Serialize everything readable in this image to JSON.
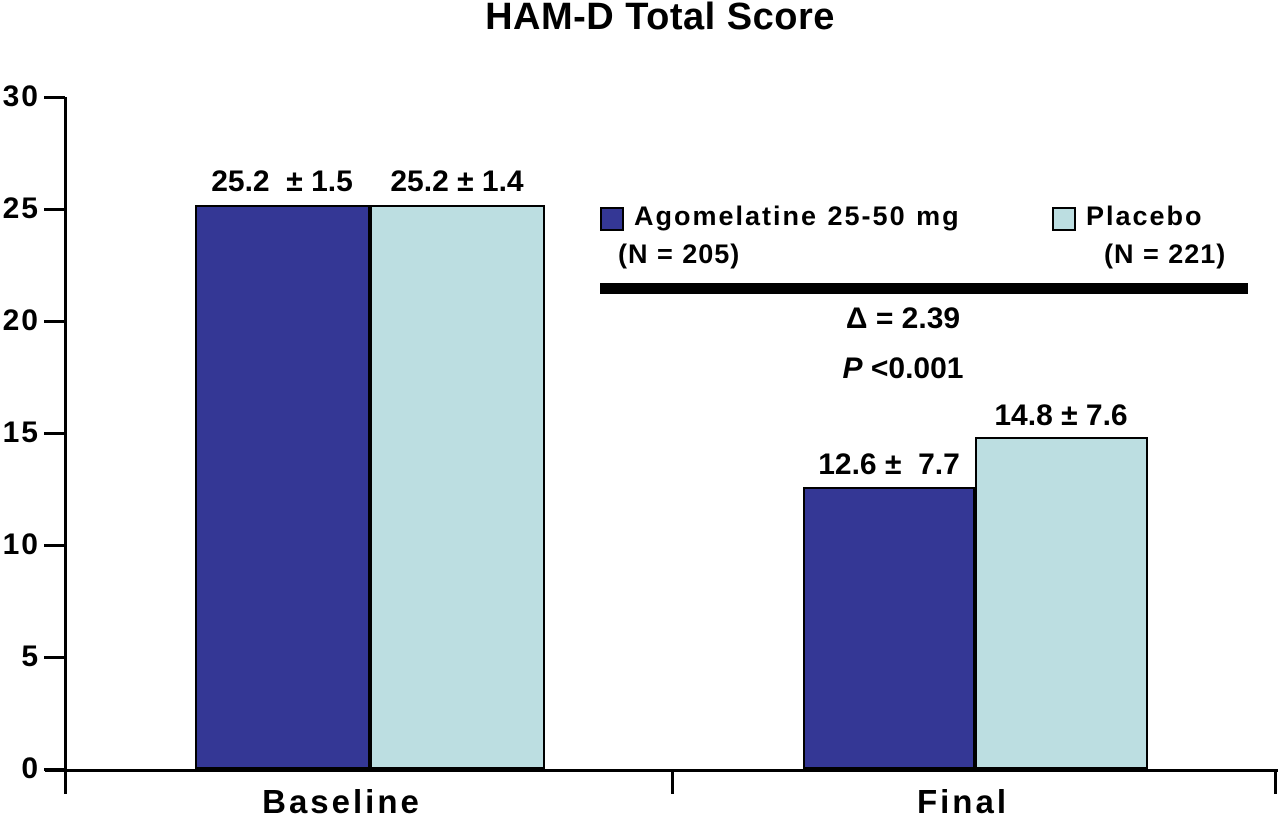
{
  "title": "HAM-D Total Score",
  "chart_data": {
    "type": "bar",
    "categories": [
      "Baseline",
      "Final"
    ],
    "series": [
      {
        "name": "Agomelatine 25-50 mg",
        "n_label": "(N = 205)",
        "color": "#343795",
        "values": [
          25.2,
          12.6
        ],
        "value_labels": [
          "25.2  ± 1.5",
          "12.6 ±  7.7"
        ]
      },
      {
        "name": "Placebo",
        "n_label": "(N = 221)",
        "color": "#BCDEE1",
        "values": [
          25.2,
          14.8
        ],
        "value_labels": [
          "25.2 ± 1.4",
          "14.8 ± 7.6"
        ]
      }
    ],
    "xlabel": "",
    "ylabel": "",
    "ylim": [
      0,
      30
    ],
    "yticks": [
      "0",
      "5",
      "10",
      "15",
      "20",
      "25",
      "30"
    ],
    "grid": false,
    "legend_position": "right-center",
    "annotations": {
      "delta": "Δ = 2.39",
      "p_italic": "P",
      "p_rest": " <0.001"
    }
  }
}
